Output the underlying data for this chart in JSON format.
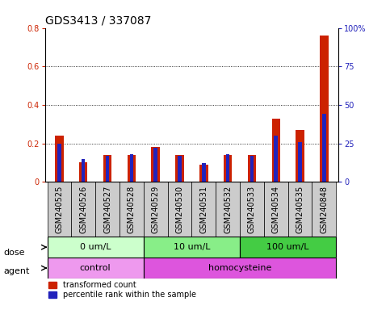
{
  "title": "GDS3413 / 337087",
  "samples": [
    "GSM240525",
    "GSM240526",
    "GSM240527",
    "GSM240528",
    "GSM240529",
    "GSM240530",
    "GSM240531",
    "GSM240532",
    "GSM240533",
    "GSM240534",
    "GSM240535",
    "GSM240848"
  ],
  "red_values": [
    0.24,
    0.1,
    0.14,
    0.14,
    0.18,
    0.14,
    0.09,
    0.14,
    0.14,
    0.33,
    0.27,
    0.76
  ],
  "blue_pct": [
    25,
    15,
    17,
    18,
    22,
    17,
    12,
    18,
    17,
    30,
    26,
    44
  ],
  "ylim_left": [
    0,
    0.8
  ],
  "ylim_right": [
    0,
    100
  ],
  "yticks_left": [
    0,
    0.2,
    0.4,
    0.6,
    0.8
  ],
  "yticks_right": [
    0,
    25,
    50,
    75,
    100
  ],
  "ytick_labels_right": [
    "0",
    "25",
    "50",
    "75",
    "100%"
  ],
  "dose_groups": [
    {
      "label": "0 um/L",
      "start": 0,
      "end": 4,
      "color": "#ccffcc"
    },
    {
      "label": "10 um/L",
      "start": 4,
      "end": 8,
      "color": "#88ee88"
    },
    {
      "label": "100 um/L",
      "start": 8,
      "end": 12,
      "color": "#44cc44"
    }
  ],
  "agent_groups": [
    {
      "label": "control",
      "start": 0,
      "end": 4,
      "color": "#ee99ee"
    },
    {
      "label": "homocysteine",
      "start": 4,
      "end": 12,
      "color": "#dd55dd"
    }
  ],
  "red_bar_width": 0.35,
  "blue_bar_width": 0.15,
  "red_color": "#cc2200",
  "blue_color": "#2222bb",
  "bg_color": "#ffffff",
  "sample_box_color": "#cccccc",
  "label_transformed": "transformed count",
  "label_percentile": "percentile rank within the sample",
  "dose_label": "dose",
  "agent_label": "agent",
  "title_fontsize": 10,
  "tick_fontsize": 7,
  "label_fontsize": 8,
  "grid_lines": [
    0.2,
    0.4,
    0.6
  ]
}
